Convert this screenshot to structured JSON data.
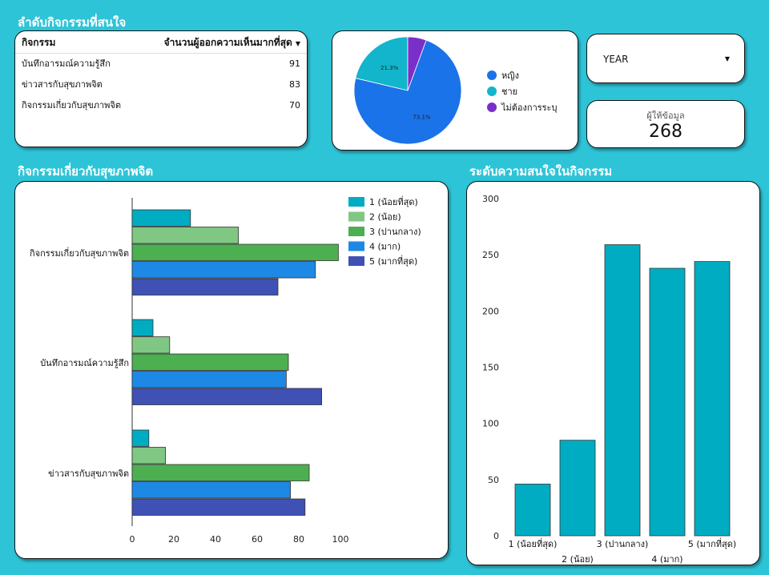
{
  "table_section": {
    "title": "ลำดับกิจกรรมที่สนใจ",
    "col_activity": "กิจกรรม",
    "col_count": "จำนวนผู้ออกความเห็นมากที่สุด",
    "rows": [
      {
        "activity": "บันทึกอารมณ์ความรู้สึก",
        "count": "91"
      },
      {
        "activity": "ข่าวสารกับสุขภาพจิต",
        "count": "83"
      },
      {
        "activity": "กิจกรรมเกี่ยวกับสุขภาพจิต",
        "count": "70"
      }
    ]
  },
  "year_filter": {
    "label": "YEAR"
  },
  "kpi": {
    "label": "ผู้ให้ข้อมูล",
    "value": "268"
  },
  "hbar_title": "กิจกรรมเกี่ยวกับสุขภาพจิต",
  "vbar_title": "ระดับความสนใจในกิจกรรม",
  "chart_data": [
    {
      "type": "pie",
      "labels": [
        "หญิง",
        "ชาย",
        "ไม่ต้องการระบุ"
      ],
      "values": [
        73.1,
        21.3,
        5.6
      ],
      "data_labels": [
        "73.1%",
        "21.3%",
        ""
      ],
      "colors": [
        "#1a73e8",
        "#12b5cb",
        "#7b2fc9"
      ],
      "legend": "right"
    },
    {
      "type": "bar",
      "orientation": "horizontal",
      "categories": [
        "กิจกรรมเกี่ยวกับสุขภาพจิต",
        "บันทึกอารมณ์ความรู้สึก",
        "ข่าวสารกับสุขภาพจิต"
      ],
      "series": [
        {
          "name": "1 (น้อยที่สุด)",
          "color": "#00acc1",
          "values": [
            28,
            10,
            8
          ]
        },
        {
          "name": "2 (น้อย)",
          "color": "#81c784",
          "values": [
            51,
            18,
            16
          ]
        },
        {
          "name": "3 (ปานกลาง)",
          "color": "#4caf50",
          "values": [
            99,
            75,
            85
          ]
        },
        {
          "name": "4 (มาก)",
          "color": "#1e88e5",
          "values": [
            88,
            74,
            76
          ]
        },
        {
          "name": "5 (มากที่สุด)",
          "color": "#3f51b5",
          "values": [
            70,
            91,
            83
          ]
        }
      ],
      "xlim": [
        0,
        100
      ],
      "xticks": [
        "0",
        "20",
        "40",
        "60",
        "80",
        "100"
      ],
      "legend": "top-right"
    },
    {
      "type": "bar",
      "categories": [
        "1 (น้อยที่สุด)",
        "2 (น้อย)",
        "3 (ปานกลาง)",
        "4 (มาก)",
        "5 (มากที่สุด)"
      ],
      "values": [
        46,
        85,
        259,
        238,
        244
      ],
      "color": "#00acc1",
      "ylim": [
        0,
        300
      ],
      "yticks": [
        "0",
        "50",
        "100",
        "150",
        "200",
        "250",
        "300"
      ]
    }
  ]
}
